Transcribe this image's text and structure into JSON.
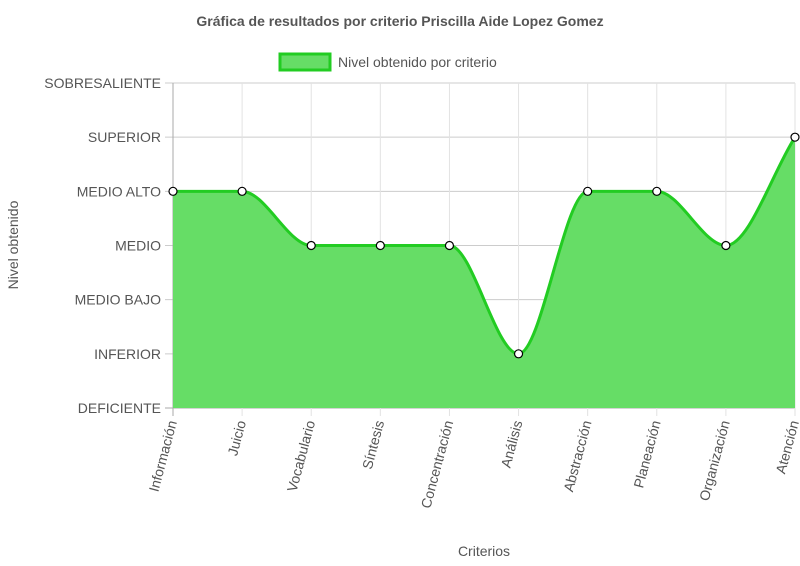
{
  "chart_data": {
    "type": "area",
    "title": "Gráfica de resultados por criterio Priscilla Aide Lopez Gomez",
    "xlabel": "Criterios",
    "ylabel": "Nivel obtenido",
    "y_levels": [
      "DEFICIENTE",
      "INFERIOR",
      "MEDIO BAJO",
      "MEDIO",
      "MEDIO ALTO",
      "SUPERIOR",
      "SOBRESALIENTE"
    ],
    "ylim": [
      0,
      6
    ],
    "categories": [
      "Información",
      "Juicio",
      "Vocabulario",
      "Síntesis",
      "Concentración",
      "Análisis",
      "Abstracción",
      "Planeación",
      "Organización",
      "Atención"
    ],
    "series": [
      {
        "name": "Nivel obtenido por criterio",
        "values": [
          4,
          4,
          3,
          3,
          3,
          1,
          4,
          4,
          3,
          5
        ]
      }
    ],
    "grid": true,
    "legend": "top-center",
    "colors": {
      "fill": "#66dd66",
      "stroke": "#22cc22",
      "point_fill": "#ffffff",
      "point_stroke": "#000000",
      "grid": "#dddddd",
      "text": "#555555"
    }
  }
}
